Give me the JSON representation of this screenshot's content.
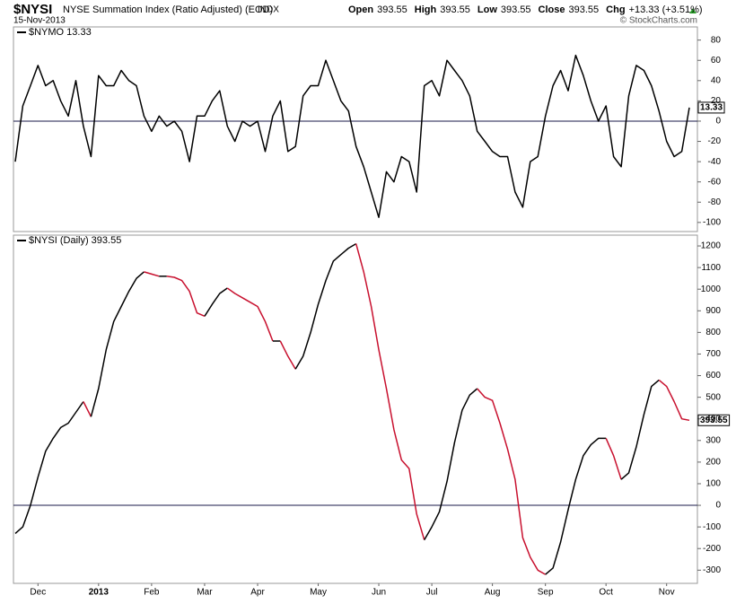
{
  "header": {
    "symbol": "$NYSI",
    "name": "NYSE Summation Index (Ratio Adjusted) (EOD)",
    "exchange": "INDX",
    "date": "15-Nov-2013",
    "quote": [
      {
        "label": "Open",
        "value": "393.55"
      },
      {
        "label": "High",
        "value": "393.55"
      },
      {
        "label": "Low",
        "value": "393.55"
      },
      {
        "label": "Close",
        "value": "393.55"
      },
      {
        "label": "Chg",
        "value": "+13.33 (+3.51%)"
      }
    ],
    "copyright": "© StockCharts.com"
  },
  "chart_data": [
    {
      "type": "line",
      "legend": "$NYMO  13.33",
      "last_label": "13.33",
      "color": "#000000",
      "zero_line": true,
      "grid": false,
      "values": [
        -40,
        15,
        35,
        55,
        35,
        40,
        20,
        5,
        40,
        -5,
        -35,
        45,
        35,
        35,
        50,
        40,
        35,
        5,
        -10,
        5,
        -5,
        0,
        -10,
        -40,
        5,
        5,
        20,
        30,
        -5,
        -20,
        0,
        -5,
        0,
        -30,
        5,
        20,
        -30,
        -25,
        25,
        35,
        35,
        60,
        40,
        20,
        10,
        -25,
        -45,
        -70,
        -95,
        -50,
        -60,
        -35,
        -40,
        -70,
        35,
        40,
        25,
        60,
        50,
        40,
        25,
        -10,
        -20,
        -30,
        -35,
        -35,
        -70,
        -85,
        -40,
        -35,
        5,
        35,
        50,
        30,
        65,
        45,
        20,
        0,
        15,
        -35,
        -45,
        25,
        55,
        50,
        35,
        10,
        -20,
        -35,
        -30,
        13.33
      ],
      "ylim": [
        -109,
        93
      ],
      "yticks": [
        -100,
        -80,
        -60,
        -40,
        -20,
        0,
        20,
        40,
        60,
        80
      ]
    },
    {
      "type": "updown_line",
      "legend": "$NYSI (Daily) 393.55",
      "last_label": "393.55",
      "up_color": "#000000",
      "down_color": "#c8102e",
      "zero_line": true,
      "grid": false,
      "categories": [
        null,
        null,
        null,
        "Dec",
        null,
        null,
        null,
        null,
        null,
        null,
        null,
        "2013",
        null,
        null,
        null,
        null,
        null,
        null,
        "Feb",
        null,
        null,
        null,
        null,
        null,
        null,
        "Mar",
        null,
        null,
        null,
        null,
        null,
        null,
        "Apr",
        null,
        null,
        null,
        null,
        null,
        null,
        null,
        "May",
        null,
        null,
        null,
        null,
        null,
        null,
        null,
        "Jun",
        null,
        null,
        null,
        null,
        null,
        null,
        "Jul",
        null,
        null,
        null,
        null,
        null,
        null,
        null,
        "Aug",
        null,
        null,
        null,
        null,
        null,
        null,
        "Sep",
        null,
        null,
        null,
        null,
        null,
        null,
        null,
        "Oct",
        null,
        null,
        null,
        null,
        null,
        null,
        null,
        "Nov",
        null,
        null,
        null
      ],
      "values": [
        -130,
        -100,
        0,
        130,
        250,
        310,
        360,
        380,
        430,
        480,
        410,
        540,
        720,
        850,
        920,
        990,
        1050,
        1080,
        1070,
        1060,
        1060,
        1055,
        1040,
        990,
        890,
        875,
        930,
        980,
        1005,
        980,
        960,
        940,
        920,
        850,
        760,
        760,
        690,
        630,
        690,
        800,
        930,
        1040,
        1130,
        1160,
        1190,
        1210,
        1080,
        920,
        720,
        540,
        350,
        210,
        170,
        -40,
        -160,
        -100,
        -30,
        110,
        290,
        440,
        510,
        540,
        500,
        485,
        380,
        260,
        120,
        -150,
        -240,
        -300,
        -320,
        -290,
        -170,
        -20,
        120,
        230,
        280,
        310,
        310,
        230,
        120,
        150,
        270,
        420,
        550,
        580,
        550,
        480,
        400,
        393.55
      ],
      "ylim": [
        -361,
        1250
      ],
      "yticks": [
        -300,
        -200,
        -100,
        0,
        100,
        200,
        300,
        400,
        500,
        600,
        700,
        800,
        900,
        1000,
        1100,
        1200
      ]
    }
  ]
}
